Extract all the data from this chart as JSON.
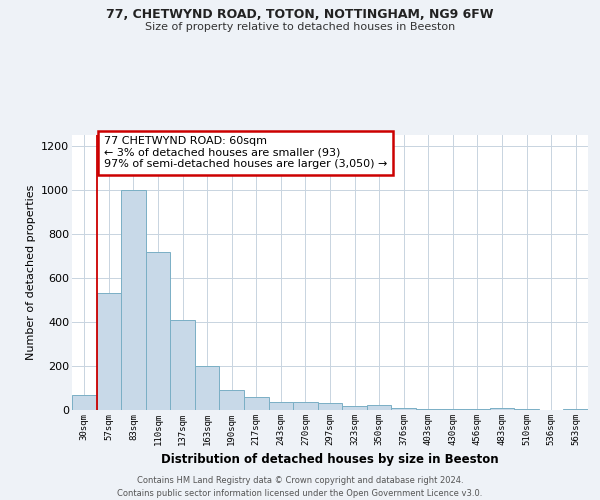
{
  "title1": "77, CHETWYND ROAD, TOTON, NOTTINGHAM, NG9 6FW",
  "title2": "Size of property relative to detached houses in Beeston",
  "xlabel": "Distribution of detached houses by size in Beeston",
  "ylabel": "Number of detached properties",
  "categories": [
    "30sqm",
    "57sqm",
    "83sqm",
    "110sqm",
    "137sqm",
    "163sqm",
    "190sqm",
    "217sqm",
    "243sqm",
    "270sqm",
    "297sqm",
    "323sqm",
    "350sqm",
    "376sqm",
    "403sqm",
    "430sqm",
    "456sqm",
    "483sqm",
    "510sqm",
    "536sqm",
    "563sqm"
  ],
  "values": [
    70,
    530,
    1000,
    720,
    410,
    200,
    90,
    60,
    35,
    35,
    30,
    20,
    25,
    8,
    5,
    5,
    5,
    10,
    5,
    0,
    3
  ],
  "bar_color": "#c8d9e8",
  "bar_edge_color": "#7aafc5",
  "annotation_text": "77 CHETWYND ROAD: 60sqm\n← 3% of detached houses are smaller (93)\n97% of semi-detached houses are larger (3,050) →",
  "annotation_box_color": "white",
  "annotation_border_color": "#cc0000",
  "vline_color": "#cc0000",
  "vline_x_index": 1,
  "ylim": [
    0,
    1250
  ],
  "yticks": [
    0,
    200,
    400,
    600,
    800,
    1000,
    1200
  ],
  "footnote": "Contains HM Land Registry data © Crown copyright and database right 2024.\nContains public sector information licensed under the Open Government Licence v3.0.",
  "bg_color": "#eef2f7",
  "plot_bg_color": "#ffffff",
  "grid_color": "#c8d4e0"
}
